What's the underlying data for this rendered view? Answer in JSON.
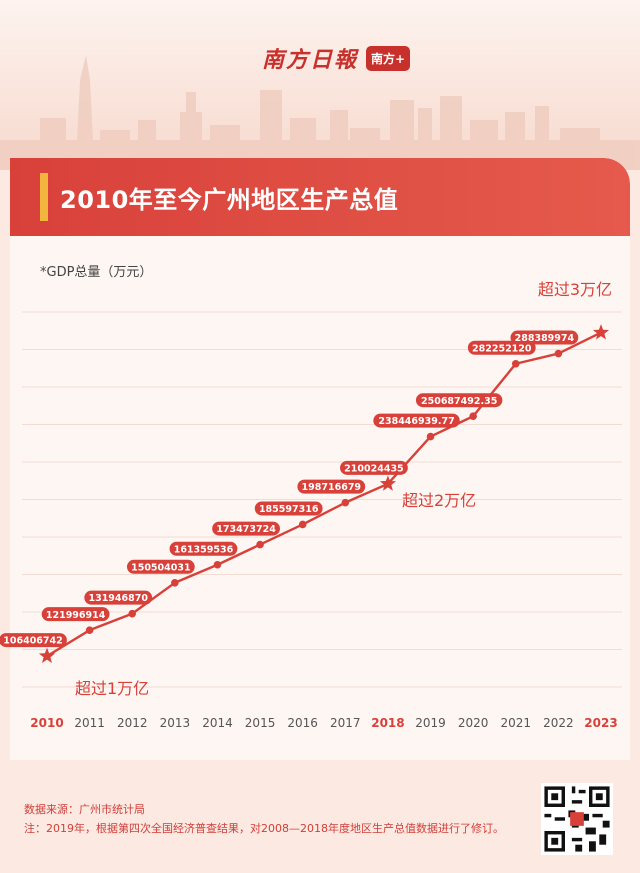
{
  "brand": {
    "logo_text": "南方日報",
    "badge": "南方+"
  },
  "header": {
    "title": "2010年至今广州地区生产总值"
  },
  "chart_data": {
    "type": "line",
    "title": "2010年至今广州地区生产总值",
    "ylabel": "*GDP总量（万元）",
    "xlabel": "",
    "categories": [
      "2010",
      "2011",
      "2012",
      "2013",
      "2014",
      "2015",
      "2016",
      "2017",
      "2018",
      "2019",
      "2020",
      "2021",
      "2022",
      "2023"
    ],
    "values": [
      106406742,
      121996914,
      131946870,
      150504031,
      161359536,
      173473724,
      185597316,
      198716679,
      210024435,
      238446939.77,
      250687492.35,
      282252120,
      288389974,
      301000000
    ],
    "labels": [
      "106406742",
      "121996914",
      "131946870",
      "150504031",
      "161359536",
      "173473724",
      "185597316",
      "198716679",
      "210024435",
      "238446939.77",
      "250687492.35",
      "282252120",
      "288389974",
      ""
    ],
    "star_years": [
      "2010",
      "2018",
      "2023"
    ],
    "highlight_years": [
      "2010",
      "2018",
      "2023"
    ],
    "ylim": [
      80000000,
      320000000
    ],
    "grid": true,
    "annotations": [
      {
        "year": "2010",
        "text": "超过1万亿"
      },
      {
        "year": "2018",
        "text": "超过2万亿"
      },
      {
        "year": "2023",
        "text": "超过3万亿"
      }
    ],
    "colors": {
      "line": "#d8413a",
      "highlight": "#d8413a",
      "tick": "#555555",
      "grid": "#f3dcd3"
    }
  },
  "footer": {
    "source": "数据来源：广州市统计局",
    "note": "注：2019年，根据第四次全国经济普查结果，对2008—2018年度地区生产总值数据进行了修订。"
  }
}
